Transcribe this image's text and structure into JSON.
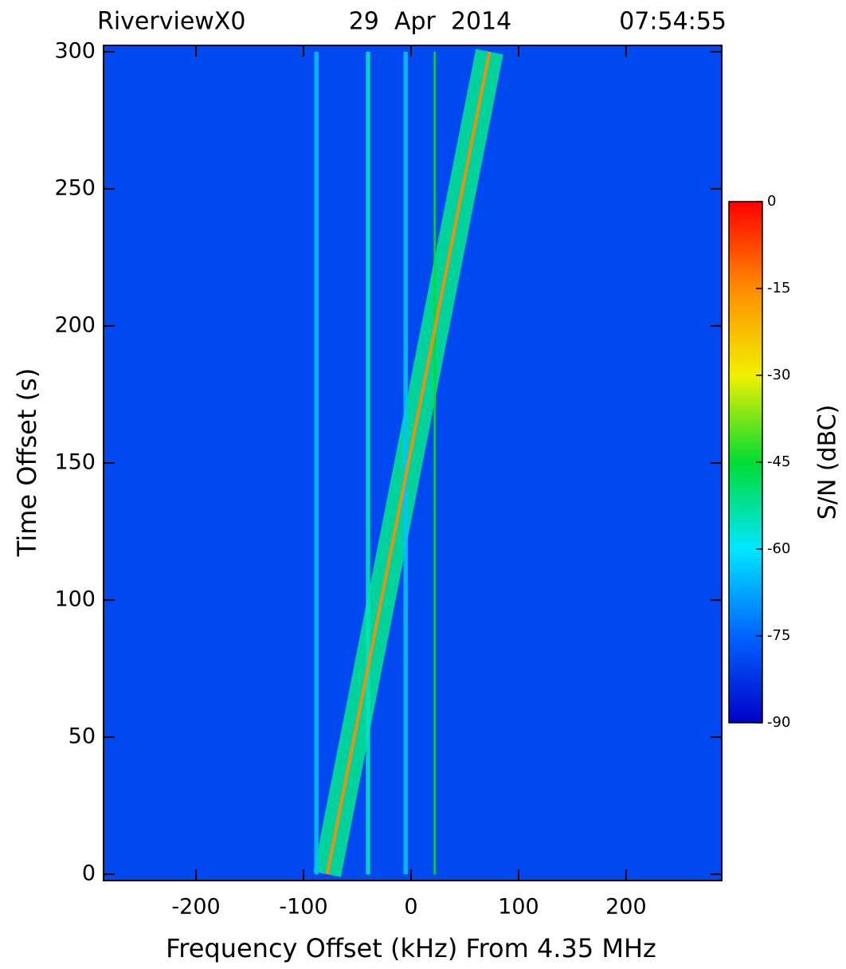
{
  "chart_data": {
    "type": "spectrogram",
    "title": {
      "station": "RiverviewX0",
      "date": "29  Apr  2014",
      "time": "07:54:55"
    },
    "xlabel": "Frequency Offset (kHz) From 4.35 MHz",
    "ylabel": "Time Offset (s)",
    "xlim": [
      -286,
      289
    ],
    "xticks": [
      -200,
      -100,
      0,
      100,
      200
    ],
    "ylim": [
      -2.3,
      302.3
    ],
    "yticks": [
      0,
      50,
      100,
      150,
      200,
      250,
      300
    ],
    "background_level": -79,
    "traces": [
      {
        "x": [
          -78,
          73
        ],
        "y": [
          0,
          300
        ],
        "level": -52,
        "width": 26
      },
      {
        "x": [
          -88,
          -88
        ],
        "y": [
          0,
          300
        ],
        "level": -64,
        "width": 4
      },
      {
        "x": [
          -40,
          -40
        ],
        "y": [
          0,
          300
        ],
        "level": -55,
        "width": 4
      },
      {
        "x": [
          -5,
          -5
        ],
        "y": [
          0,
          300
        ],
        "level": -64,
        "width": 4
      },
      {
        "x": [
          22,
          22
        ],
        "y": [
          0,
          300
        ],
        "level": -45,
        "width": 2
      },
      {
        "x": [
          -78,
          73
        ],
        "y": [
          0,
          300
        ],
        "level": -15,
        "width": 3
      }
    ],
    "colorbar": {
      "label": "S/N (dBC)",
      "lim": [
        -90,
        0
      ],
      "ticks": [
        0,
        -15,
        -30,
        -45,
        -60,
        -75,
        -90
      ],
      "colormap": [
        "#0000c8",
        "#0064ff",
        "#00e6ff",
        "#00dc32",
        "#f0f000",
        "#ff8c00",
        "#ff0000"
      ]
    }
  }
}
